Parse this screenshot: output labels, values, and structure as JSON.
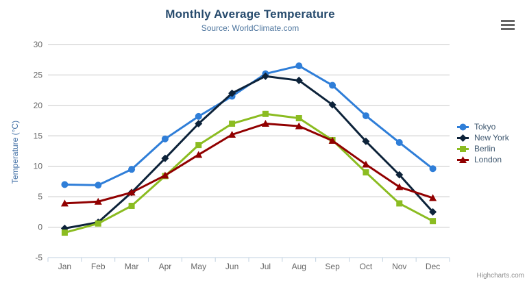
{
  "chart_data": {
    "type": "line",
    "title": "Monthly Average Temperature",
    "subtitle": "Source: WorldClimate.com",
    "categories": [
      "Jan",
      "Feb",
      "Mar",
      "Apr",
      "May",
      "Jun",
      "Jul",
      "Aug",
      "Sep",
      "Oct",
      "Nov",
      "Dec"
    ],
    "ylabel": "Temperature (°C)",
    "ylim": [
      -5,
      30
    ],
    "ytick_interval": 5,
    "yticks": [
      -5,
      0,
      5,
      10,
      15,
      20,
      25,
      30
    ],
    "grid": true,
    "legend_position": "right",
    "series": [
      {
        "name": "Tokyo",
        "color": "#2f7ed8",
        "marker": "circle",
        "values": [
          7.0,
          6.9,
          9.5,
          14.5,
          18.2,
          21.5,
          25.2,
          26.5,
          23.3,
          18.3,
          13.9,
          9.6
        ]
      },
      {
        "name": "New York",
        "color": "#0d233a",
        "marker": "diamond",
        "values": [
          -0.2,
          0.8,
          5.7,
          11.3,
          17.0,
          22.0,
          24.8,
          24.1,
          20.1,
          14.1,
          8.6,
          2.5
        ]
      },
      {
        "name": "Berlin",
        "color": "#8bbc21",
        "marker": "square",
        "values": [
          -0.9,
          0.6,
          3.5,
          8.4,
          13.5,
          17.0,
          18.6,
          17.9,
          14.3,
          9.0,
          3.9,
          1.0
        ]
      },
      {
        "name": "London",
        "color": "#910000",
        "marker": "triangle",
        "values": [
          3.9,
          4.2,
          5.7,
          8.5,
          11.9,
          15.2,
          17.0,
          16.6,
          14.2,
          10.3,
          6.6,
          4.8
        ]
      }
    ]
  },
  "colors": {
    "title_text": "#274b6d",
    "subtitle_text": "#4d759e",
    "yaxis_title_text": "#4572a7",
    "axis_label_text": "#666666",
    "legend_text": "#3e576f",
    "gridline": "#c6c6c6",
    "axis_line": "#c0d0e0",
    "export_icon": "#666666",
    "credit_text": "#909090"
  },
  "export_button": {
    "icon": "hamburger-icon"
  },
  "credit": "Highcharts.com"
}
